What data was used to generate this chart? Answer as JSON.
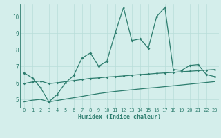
{
  "xlabel": "Humidex (Indice chaleur)",
  "x": [
    0,
    1,
    2,
    3,
    4,
    5,
    6,
    7,
    8,
    9,
    10,
    11,
    12,
    13,
    14,
    15,
    16,
    17,
    18,
    19,
    20,
    21,
    22,
    23
  ],
  "line1": [
    6.6,
    6.3,
    5.7,
    4.85,
    5.3,
    6.0,
    6.45,
    7.5,
    7.8,
    7.0,
    7.3,
    9.0,
    10.55,
    8.55,
    8.65,
    8.1,
    10.0,
    10.55,
    6.8,
    6.75,
    7.05,
    7.1,
    6.5,
    6.38
  ],
  "line2_upper": [
    5.95,
    6.05,
    6.1,
    5.95,
    6.0,
    6.07,
    6.13,
    6.2,
    6.27,
    6.3,
    6.35,
    6.38,
    6.42,
    6.46,
    6.5,
    6.53,
    6.57,
    6.6,
    6.63,
    6.67,
    6.7,
    6.73,
    6.77,
    6.8
  ],
  "line2_lower": [
    4.85,
    4.95,
    5.0,
    4.85,
    4.93,
    5.02,
    5.1,
    5.18,
    5.27,
    5.35,
    5.42,
    5.48,
    5.53,
    5.58,
    5.63,
    5.68,
    5.72,
    5.77,
    5.82,
    5.87,
    5.92,
    5.97,
    6.02,
    6.07
  ],
  "color": "#2d7d6e",
  "bg_color": "#d4eeeb",
  "grid_color": "#b8ddd9",
  "ylim": [
    4.5,
    10.75
  ],
  "yticks": [
    5,
    6,
    7,
    8,
    9,
    10
  ],
  "xlim": [
    -0.5,
    23.5
  ]
}
